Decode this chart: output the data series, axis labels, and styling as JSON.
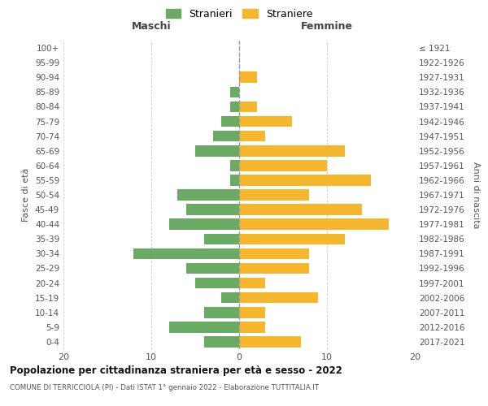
{
  "age_groups": [
    "0-4",
    "5-9",
    "10-14",
    "15-19",
    "20-24",
    "25-29",
    "30-34",
    "35-39",
    "40-44",
    "45-49",
    "50-54",
    "55-59",
    "60-64",
    "65-69",
    "70-74",
    "75-79",
    "80-84",
    "85-89",
    "90-94",
    "95-99",
    "100+"
  ],
  "birth_years": [
    "2017-2021",
    "2012-2016",
    "2007-2011",
    "2002-2006",
    "1997-2001",
    "1992-1996",
    "1987-1991",
    "1982-1986",
    "1977-1981",
    "1972-1976",
    "1967-1971",
    "1962-1966",
    "1957-1961",
    "1952-1956",
    "1947-1951",
    "1942-1946",
    "1937-1941",
    "1932-1936",
    "1927-1931",
    "1922-1926",
    "≤ 1921"
  ],
  "maschi": [
    4,
    8,
    4,
    2,
    5,
    6,
    12,
    4,
    8,
    6,
    7,
    1,
    1,
    5,
    3,
    2,
    1,
    1,
    0,
    0,
    0
  ],
  "femmine": [
    7,
    3,
    3,
    9,
    3,
    8,
    8,
    12,
    17,
    14,
    8,
    15,
    10,
    12,
    3,
    6,
    2,
    0,
    2,
    0,
    0
  ],
  "male_color": "#6aaa64",
  "female_color": "#f5b730",
  "dashed_line_color": "#999999",
  "grid_color": "#cccccc",
  "title": "Popolazione per cittadinanza straniera per età e sesso - 2022",
  "subtitle": "COMUNE DI TERRICCIOLA (PI) - Dati ISTAT 1° gennaio 2022 - Elaborazione TUTTITALIA.IT",
  "xlabel_left": "Maschi",
  "xlabel_right": "Femmine",
  "ylabel_left": "Fasce di età",
  "ylabel_right": "Anni di nascita",
  "legend_stranieri": "Stranieri",
  "legend_straniere": "Straniere",
  "xlim": 20,
  "background_color": "#ffffff"
}
